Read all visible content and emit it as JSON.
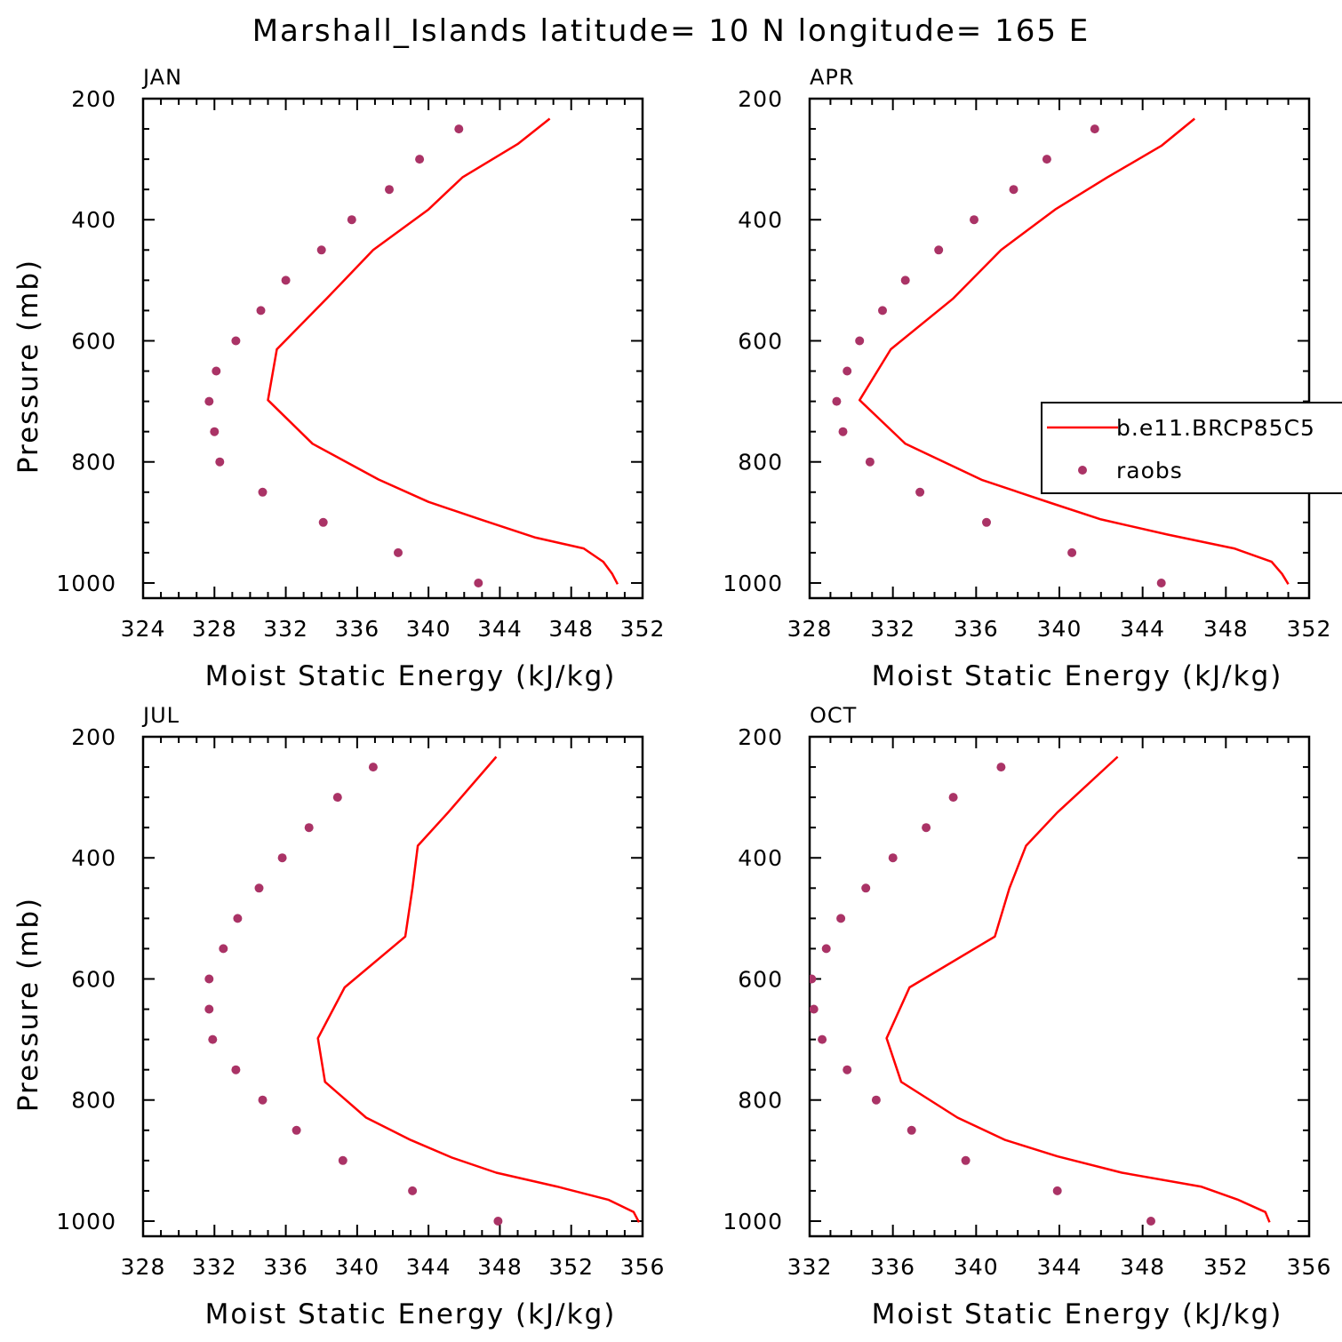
{
  "title": "Marshall_Islands  latitude= 10 N longitude= 165 E",
  "colors": {
    "model": "#ff0000",
    "obs": "#aa3366",
    "axis": "#000000"
  },
  "legend": {
    "model_label": "b.e11.BRCP85C5",
    "obs_label": "raobs"
  },
  "chart_data": [
    {
      "type": "line",
      "panel": "JAN",
      "xlabel": "Moist Static Energy (kJ/kg)",
      "ylabel": "Pressure (mb)",
      "xlim": [
        324,
        352
      ],
      "ylim": [
        1025,
        200
      ],
      "xticks": [
        324,
        328,
        332,
        336,
        340,
        344,
        348,
        352
      ],
      "yticks": [
        200,
        400,
        600,
        800,
        1000
      ],
      "grid": false,
      "series": [
        {
          "name": "b.e11.BRCP85C5",
          "style": "line",
          "x": [
            350.6,
            350.3,
            349.8,
            348.7,
            346.0,
            343.0,
            340.0,
            337.2,
            333.5,
            331.0,
            331.5,
            334.3,
            336.9,
            340.0,
            341.9,
            345.0,
            346.8
          ],
          "y": [
            1002,
            985,
            965,
            943,
            925,
            896,
            866,
            829,
            770,
            698,
            614,
            530,
            450,
            383,
            330,
            275,
            233
          ]
        },
        {
          "name": "raobs",
          "style": "dots",
          "x": [
            342.8,
            338.3,
            334.1,
            330.7,
            328.3,
            328.0,
            327.7,
            328.1,
            329.2,
            330.6,
            332.0,
            334.0,
            335.7,
            337.8,
            339.5,
            341.7
          ],
          "y": [
            1000,
            950,
            900,
            850,
            800,
            750,
            700,
            650,
            600,
            550,
            500,
            450,
            400,
            350,
            300,
            250
          ]
        }
      ]
    },
    {
      "type": "line",
      "panel": "APR",
      "xlabel": "Moist Static Energy (kJ/kg)",
      "ylabel": "",
      "xlim": [
        328,
        352
      ],
      "ylim": [
        1025,
        200
      ],
      "xticks": [
        328,
        332,
        336,
        340,
        344,
        348,
        352
      ],
      "yticks": [
        200,
        400,
        600,
        800,
        1000
      ],
      "grid": false,
      "legend_position": "right",
      "series": [
        {
          "name": "b.e11.BRCP85C5",
          "style": "line",
          "x": [
            351.0,
            350.7,
            350.2,
            348.4,
            345.2,
            342.0,
            339.6,
            336.3,
            332.6,
            330.4,
            331.9,
            334.9,
            337.2,
            339.8,
            342.3,
            344.9,
            346.5
          ],
          "y": [
            1002,
            985,
            965,
            943,
            920,
            895,
            868,
            830,
            770,
            698,
            614,
            530,
            450,
            383,
            330,
            278,
            233
          ]
        },
        {
          "name": "raobs",
          "style": "dots",
          "x": [
            344.9,
            340.6,
            336.5,
            333.3,
            330.9,
            329.6,
            329.3,
            329.8,
            330.4,
            331.5,
            332.6,
            334.2,
            335.9,
            337.8,
            339.4,
            341.7
          ],
          "y": [
            1000,
            950,
            900,
            850,
            800,
            750,
            700,
            650,
            600,
            550,
            500,
            450,
            400,
            350,
            300,
            250
          ]
        }
      ]
    },
    {
      "type": "line",
      "panel": "JUL",
      "xlabel": "Moist Static Energy (kJ/kg)",
      "ylabel": "Pressure (mb)",
      "xlim": [
        328,
        356
      ],
      "ylim": [
        1025,
        200
      ],
      "xticks": [
        328,
        332,
        336,
        340,
        344,
        348,
        352,
        356
      ],
      "yticks": [
        200,
        400,
        600,
        800,
        1000
      ],
      "grid": false,
      "series": [
        {
          "name": "b.e11.BRCP85C5",
          "style": "line",
          "x": [
            355.8,
            355.5,
            354.1,
            351.2,
            347.8,
            345.3,
            343.0,
            340.5,
            338.2,
            337.8,
            339.3,
            342.7,
            343.1,
            343.4,
            345.1,
            347.8
          ],
          "y": [
            1002,
            985,
            965,
            943,
            920,
            895,
            866,
            829,
            770,
            698,
            614,
            530,
            450,
            380,
            325,
            233
          ]
        },
        {
          "name": "raobs",
          "style": "dots",
          "x": [
            347.9,
            343.1,
            339.2,
            336.6,
            334.7,
            333.2,
            331.9,
            331.7,
            331.7,
            332.5,
            333.3,
            334.5,
            335.8,
            337.3,
            338.9,
            340.9
          ],
          "y": [
            1000,
            950,
            900,
            850,
            800,
            750,
            700,
            650,
            600,
            550,
            500,
            450,
            400,
            350,
            300,
            250
          ]
        }
      ]
    },
    {
      "type": "line",
      "panel": "OCT",
      "xlabel": "Moist Static Energy (kJ/kg)",
      "ylabel": "",
      "xlim": [
        332,
        356
      ],
      "ylim": [
        1025,
        200
      ],
      "xticks": [
        332,
        336,
        340,
        344,
        348,
        352,
        356
      ],
      "yticks": [
        200,
        400,
        600,
        800,
        1000
      ],
      "grid": false,
      "series": [
        {
          "name": "b.e11.BRCP85C5",
          "style": "line",
          "x": [
            354.1,
            353.9,
            352.6,
            350.8,
            347.0,
            343.9,
            341.4,
            339.1,
            336.4,
            335.7,
            336.8,
            340.9,
            341.6,
            342.4,
            343.9,
            346.8
          ],
          "y": [
            1002,
            985,
            965,
            943,
            920,
            893,
            866,
            829,
            770,
            698,
            614,
            530,
            450,
            380,
            325,
            233
          ]
        },
        {
          "name": "raobs",
          "style": "dots",
          "x": [
            348.4,
            343.9,
            339.5,
            336.9,
            335.2,
            333.8,
            332.6,
            332.2,
            332.1,
            332.8,
            333.5,
            334.7,
            336.0,
            337.6,
            338.9,
            341.2
          ],
          "y": [
            1000,
            950,
            900,
            850,
            800,
            750,
            700,
            650,
            600,
            550,
            500,
            450,
            400,
            350,
            300,
            250
          ]
        }
      ]
    }
  ]
}
